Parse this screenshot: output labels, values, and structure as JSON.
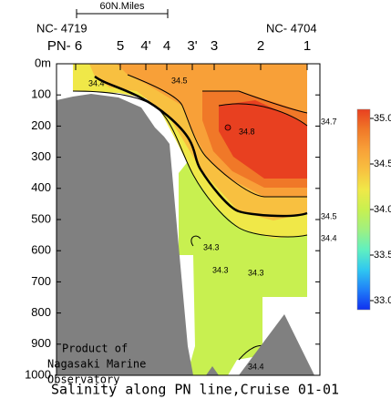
{
  "chart_data": {
    "type": "contour",
    "title": "Salinity along PN line,Cruise 01-01",
    "section_start": "NC- 4719",
    "section_end": "NC- 4704",
    "scale_label": "60N.Miles",
    "stations": [
      "PN- 6",
      "5",
      "4'",
      "4",
      "3'",
      "3",
      "2",
      "1"
    ],
    "ylim": [
      0,
      1000
    ],
    "yticks": [
      {
        "value": 0,
        "label": "0m"
      },
      100,
      200,
      300,
      400,
      500,
      600,
      700,
      800,
      900,
      1000
    ],
    "contour_labels": [
      34.4,
      34.5,
      34.8,
      34.7,
      34.5,
      34.4,
      34.3,
      34.3,
      34.3,
      34.4
    ],
    "colorbar": {
      "lim": [
        32.9,
        35.1
      ],
      "ticks": [
        {
          "value": 35,
          "label": "35.0"
        },
        34.5,
        {
          "value": 34,
          "label": "34.0"
        },
        33.5,
        {
          "value": 33,
          "label": "33.0"
        }
      ],
      "colors": [
        "#1030f0",
        "#2080f8",
        "#30c8f0",
        "#60f0c0",
        "#a0f080",
        "#c8f050",
        "#f0e848",
        "#f8c040",
        "#f8a038",
        "#f07828",
        "#e84020"
      ]
    },
    "credit": [
      "Product of",
      "Nagasaki Marine",
      "Observatory"
    ]
  }
}
